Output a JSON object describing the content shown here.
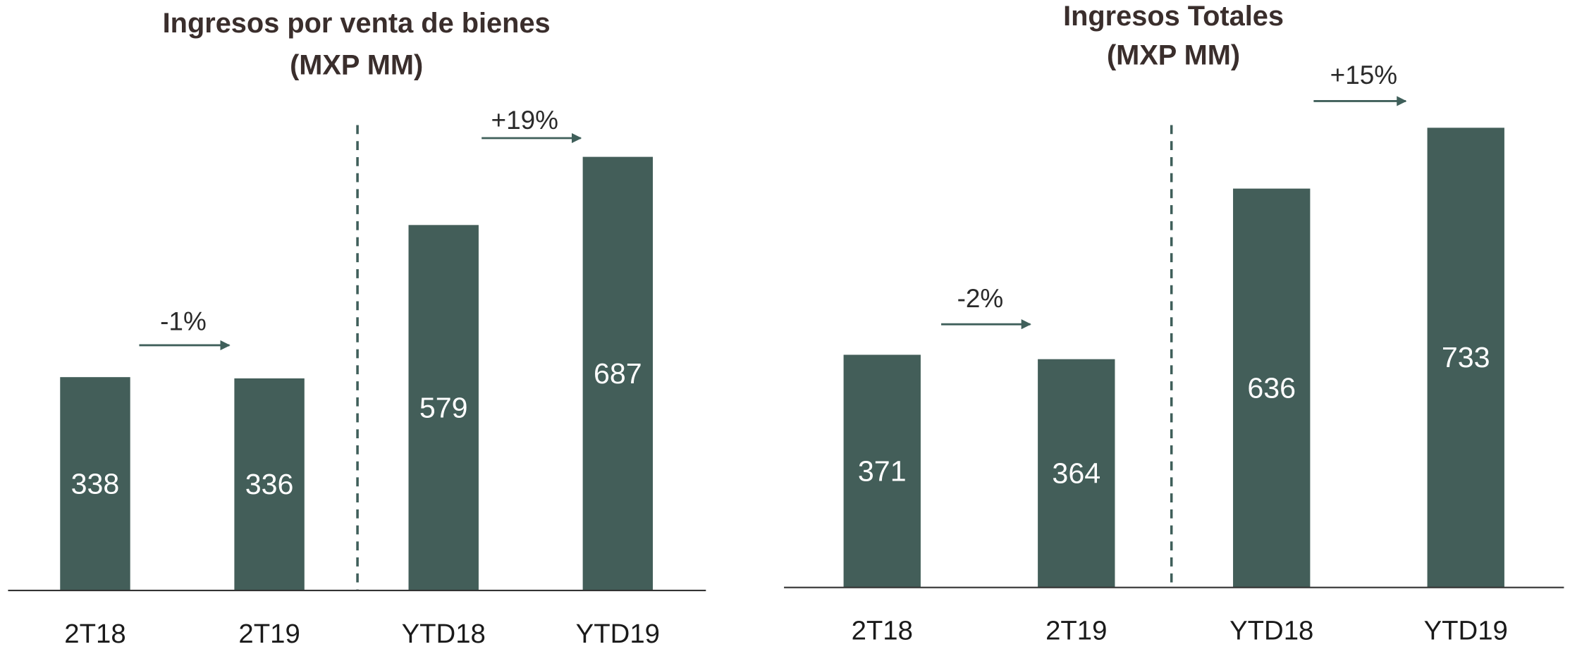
{
  "chart_data": [
    {
      "type": "bar",
      "title": [
        "Ingresos por venta de bienes",
        "(MXP MM)"
      ],
      "categories": [
        "2T18",
        "2T19",
        "YTD18",
        "YTD19"
      ],
      "values": [
        338,
        336,
        579,
        687
      ],
      "color": "#435e59",
      "ylim": [
        0,
        750
      ],
      "annotations": [
        "-1%",
        "+19%"
      ]
    },
    {
      "type": "bar",
      "title": [
        "Ingresos Totales",
        "(MXP MM)"
      ],
      "categories": [
        "2T18",
        "2T19",
        "YTD18",
        "YTD19"
      ],
      "values": [
        371,
        364,
        636,
        733
      ],
      "color": "#435e59",
      "ylim": [
        0,
        750
      ],
      "annotations": [
        "-2%",
        "+15%"
      ]
    }
  ]
}
